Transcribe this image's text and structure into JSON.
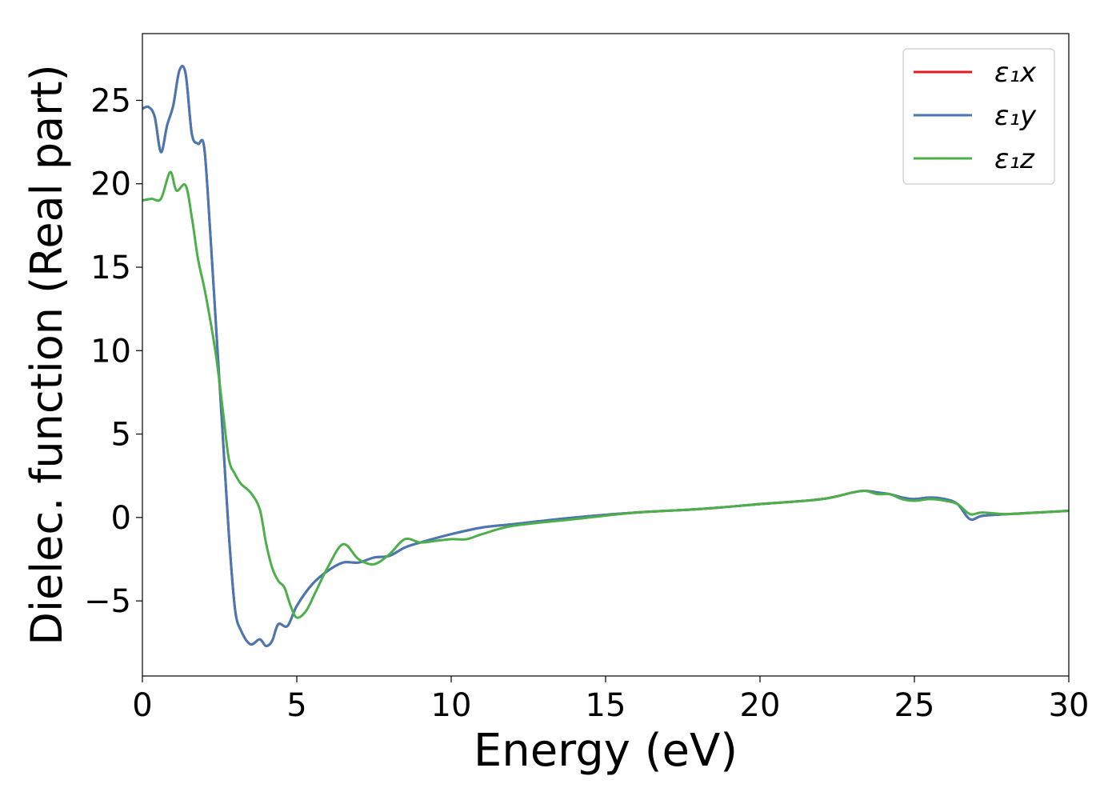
{
  "chart_data": {
    "type": "line",
    "xlabel": "Energy (eV)",
    "ylabel": "Dielec. function (Real part)",
    "xlim": [
      0,
      30
    ],
    "ylim": [
      -9.5,
      29
    ],
    "xticks": [
      0,
      5,
      10,
      15,
      20,
      25,
      30
    ],
    "yticks": [
      -5,
      0,
      5,
      10,
      15,
      20,
      25
    ],
    "xtick_labels": [
      "0",
      "5",
      "10",
      "15",
      "20",
      "25",
      "30"
    ],
    "ytick_labels": [
      "−5",
      "0",
      "5",
      "10",
      "15",
      "20",
      "25"
    ],
    "grid": false,
    "legend_position": "top-right",
    "series": [
      {
        "name": "ε₁x",
        "color": "#e41a1c",
        "x": [
          0,
          0.2,
          0.4,
          0.6,
          0.8,
          1.0,
          1.2,
          1.4,
          1.6,
          1.8,
          2.0,
          2.2,
          2.4,
          2.6,
          2.8,
          3.0,
          3.2,
          3.5,
          3.8,
          4.0,
          4.2,
          4.4,
          4.7,
          5.0,
          5.5,
          6.0,
          6.5,
          7.0,
          7.5,
          8.0,
          8.5,
          9.0,
          10.0,
          11.0,
          12.0,
          14.0,
          16.0,
          18.0,
          20.0,
          22.0,
          23.0,
          23.4,
          23.8,
          24.2,
          24.6,
          25.0,
          25.5,
          26.0,
          26.4,
          26.8,
          27.2,
          28.0,
          29.0,
          30.0
        ],
        "y": [
          24.5,
          24.6,
          24.0,
          21.9,
          23.5,
          24.7,
          26.8,
          26.6,
          23.0,
          22.4,
          22.2,
          17.0,
          11.0,
          5.0,
          -1.0,
          -5.5,
          -6.8,
          -7.6,
          -7.3,
          -7.7,
          -7.4,
          -6.4,
          -6.5,
          -5.3,
          -4.0,
          -3.2,
          -2.7,
          -2.7,
          -2.4,
          -2.3,
          -1.8,
          -1.5,
          -1.0,
          -0.6,
          -0.4,
          0.0,
          0.3,
          0.5,
          0.8,
          1.1,
          1.5,
          1.6,
          1.5,
          1.4,
          1.2,
          1.1,
          1.2,
          1.1,
          0.8,
          -0.1,
          0.1,
          0.2,
          0.3,
          0.4
        ]
      },
      {
        "name": "ε₁y",
        "color": "#4678b4",
        "x": [
          0,
          0.2,
          0.4,
          0.6,
          0.8,
          1.0,
          1.2,
          1.4,
          1.6,
          1.8,
          2.0,
          2.2,
          2.4,
          2.6,
          2.8,
          3.0,
          3.2,
          3.5,
          3.8,
          4.0,
          4.2,
          4.4,
          4.7,
          5.0,
          5.5,
          6.0,
          6.5,
          7.0,
          7.5,
          8.0,
          8.5,
          9.0,
          10.0,
          11.0,
          12.0,
          14.0,
          16.0,
          18.0,
          20.0,
          22.0,
          23.0,
          23.4,
          23.8,
          24.2,
          24.6,
          25.0,
          25.5,
          26.0,
          26.4,
          26.8,
          27.2,
          28.0,
          29.0,
          30.0
        ],
        "y": [
          24.5,
          24.6,
          24.0,
          21.9,
          23.5,
          24.7,
          26.8,
          26.6,
          23.0,
          22.4,
          22.2,
          17.0,
          11.0,
          5.0,
          -1.0,
          -5.5,
          -6.8,
          -7.6,
          -7.3,
          -7.7,
          -7.4,
          -6.4,
          -6.5,
          -5.3,
          -4.0,
          -3.2,
          -2.7,
          -2.7,
          -2.4,
          -2.3,
          -1.8,
          -1.5,
          -1.0,
          -0.6,
          -0.4,
          0.0,
          0.3,
          0.5,
          0.8,
          1.1,
          1.5,
          1.6,
          1.5,
          1.4,
          1.2,
          1.1,
          1.2,
          1.1,
          0.8,
          -0.1,
          0.1,
          0.2,
          0.3,
          0.4
        ]
      },
      {
        "name": "ε₁z",
        "color": "#4daf4a",
        "x": [
          0,
          0.3,
          0.6,
          0.9,
          1.1,
          1.4,
          1.6,
          1.8,
          2.0,
          2.2,
          2.4,
          2.6,
          2.8,
          3.0,
          3.2,
          3.5,
          3.8,
          4.0,
          4.2,
          4.4,
          4.6,
          4.8,
          5.0,
          5.3,
          5.6,
          6.0,
          6.5,
          7.0,
          7.5,
          8.0,
          8.5,
          9.0,
          9.5,
          10.0,
          10.5,
          11.0,
          12.0,
          14.0,
          16.0,
          18.0,
          20.0,
          22.0,
          23.0,
          23.4,
          23.8,
          24.2,
          24.6,
          25.0,
          25.5,
          26.0,
          26.4,
          26.8,
          27.2,
          28.0,
          29.0,
          30.0
        ],
        "y": [
          19.0,
          19.1,
          19.1,
          20.7,
          19.6,
          19.9,
          18.0,
          15.5,
          13.8,
          11.8,
          9.5,
          6.5,
          3.5,
          2.6,
          2.0,
          1.5,
          0.5,
          -1.5,
          -3.0,
          -3.8,
          -4.2,
          -5.3,
          -6.0,
          -5.6,
          -4.5,
          -3.0,
          -1.6,
          -2.5,
          -2.8,
          -2.2,
          -1.3,
          -1.5,
          -1.4,
          -1.3,
          -1.3,
          -1.0,
          -0.5,
          -0.1,
          0.3,
          0.5,
          0.8,
          1.1,
          1.5,
          1.6,
          1.4,
          1.4,
          1.1,
          1.0,
          1.1,
          1.0,
          0.8,
          0.2,
          0.3,
          0.2,
          0.3,
          0.4
        ]
      }
    ]
  }
}
